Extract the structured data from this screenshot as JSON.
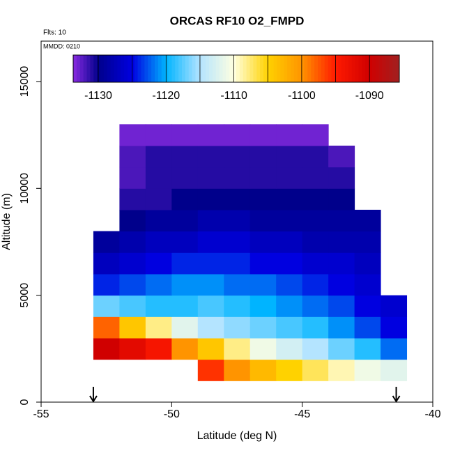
{
  "chart_data": {
    "type": "heatmap",
    "title": "ORCAS RF10 O2_FMPD",
    "annotations": [
      "Flts: 10",
      "MMDD: 0210"
    ],
    "x_label": "Latitude (deg N)",
    "y_label": "Altitude (m)",
    "xlim": [
      -55,
      -40
    ],
    "xticks": [
      -55,
      -50,
      -45,
      -40
    ],
    "ylim": [
      0,
      16890
    ],
    "yticks": [
      0,
      5000,
      10000,
      15000
    ],
    "x": [
      -52.5,
      -51.5,
      -50.5,
      -49.5,
      -48.5,
      -47.5,
      -46.5,
      -45.5,
      -44.5,
      -43.5,
      -42.5,
      -41.5
    ],
    "y": [
      1500,
      2500,
      3500,
      4500,
      5500,
      6500,
      7500,
      8500,
      9500,
      10500,
      11500,
      12500
    ],
    "z": [
      [
        null,
        null,
        null,
        null,
        -1096,
        -1100,
        -1103,
        -1105,
        -1107,
        -1109,
        -1111,
        -1112
      ],
      [
        -1090,
        -1092,
        -1094,
        -1100,
        -1104,
        -1108,
        -1111,
        -1113,
        -1115,
        -1117,
        -1119,
        -1122
      ],
      [
        -1098,
        -1104,
        -1108,
        -1112,
        -1115,
        -1116,
        -1117,
        -1118,
        -1119,
        -1121,
        -1123,
        -1125
      ],
      [
        -1117,
        -1118,
        -1119,
        -1119,
        -1118,
        -1119,
        -1120,
        -1121,
        -1122,
        -1123,
        -1125,
        -1126
      ],
      [
        -1124,
        -1123,
        -1122,
        -1121,
        -1121,
        -1122,
        -1122,
        -1123,
        -1124,
        -1125,
        -1126,
        null
      ],
      [
        -1127,
        -1126,
        -1125,
        -1124,
        -1124,
        -1124,
        -1125,
        -1125,
        -1126,
        -1126,
        -1127,
        null
      ],
      [
        -1129,
        -1128,
        -1127,
        -1127,
        -1126,
        -1126,
        -1127,
        -1127,
        -1128,
        -1128,
        -1128,
        null
      ],
      [
        null,
        -1130,
        -1129,
        -1129,
        -1128,
        -1128,
        -1129,
        -1129,
        -1129,
        -1129,
        -1129,
        null
      ],
      [
        null,
        -1131,
        -1131,
        -1130,
        -1130,
        -1130,
        -1130,
        -1130,
        -1130,
        -1130,
        null,
        null
      ],
      [
        null,
        -1132,
        -1131,
        -1131,
        -1131,
        -1131,
        -1131,
        -1131,
        -1131,
        -1131,
        null,
        null
      ],
      [
        null,
        -1132,
        -1131,
        -1131,
        -1131,
        -1131,
        -1131,
        -1131,
        -1131,
        -1132,
        null,
        null
      ],
      [
        null,
        -1133,
        -1133,
        -1133,
        -1133,
        -1133,
        -1133,
        -1133,
        -1133,
        null,
        null,
        null
      ]
    ],
    "colorbar": {
      "lim": [
        -1133.7,
        -1085.6
      ],
      "ticks": [
        -1130,
        -1120,
        -1110,
        -1100,
        -1090
      ],
      "separators": [
        -1130,
        -1125,
        -1120,
        -1115,
        -1110,
        -1105,
        -1100,
        -1095,
        -1090
      ],
      "colorscale": [
        [
          -1133.7,
          "#8a2be2"
        ],
        [
          -1130,
          "#00008b"
        ],
        [
          -1125,
          "#0000e0"
        ],
        [
          -1120,
          "#00b4ff"
        ],
        [
          -1115,
          "#b4e4ff"
        ],
        [
          -1110,
          "#ffffe0"
        ],
        [
          -1105,
          "#ffd200"
        ],
        [
          -1100,
          "#ff9400"
        ],
        [
          -1095,
          "#ff1a00"
        ],
        [
          -1090,
          "#d00000"
        ],
        [
          -1085.6,
          "#a02020"
        ]
      ]
    },
    "markers_x": [
      -53,
      -41.4
    ]
  }
}
